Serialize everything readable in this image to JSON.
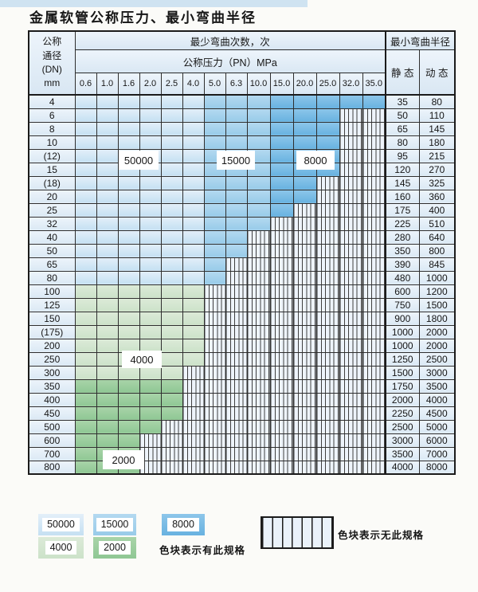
{
  "page": {
    "title": "金属软管公称压力、最小弯曲半径"
  },
  "table": {
    "header": {
      "dn_lines": [
        "公称",
        "通径",
        "(DN)",
        "mm"
      ],
      "cycles_label": "最少弯曲次数，次",
      "pressure_label": "公称压力（PN）MPa",
      "pressures": [
        "0.6",
        "1.0",
        "1.6",
        "2.0",
        "2.5",
        "4.0",
        "5.0",
        "6.3",
        "10.0",
        "15.0",
        "20.0",
        "25.0",
        "32.0",
        "35.0"
      ],
      "radius_label": "最小弯曲半径",
      "static_label": "静 态",
      "dynamic_label": "动 态"
    },
    "rows": [
      {
        "dn": "4",
        "group": "blue",
        "max_col": 13,
        "static": "35",
        "dynamic": "80"
      },
      {
        "dn": "6",
        "group": "blue",
        "max_col": 11,
        "static": "50",
        "dynamic": "110"
      },
      {
        "dn": "8",
        "group": "blue",
        "max_col": 11,
        "static": "65",
        "dynamic": "145"
      },
      {
        "dn": "10",
        "group": "blue",
        "max_col": 11,
        "static": "80",
        "dynamic": "180"
      },
      {
        "dn": "(12)",
        "group": "blue",
        "max_col": 11,
        "static": "95",
        "dynamic": "215"
      },
      {
        "dn": "15",
        "group": "blue",
        "max_col": 11,
        "static": "120",
        "dynamic": "270"
      },
      {
        "dn": "(18)",
        "group": "blue",
        "max_col": 10,
        "static": "145",
        "dynamic": "325"
      },
      {
        "dn": "20",
        "group": "blue",
        "max_col": 10,
        "static": "160",
        "dynamic": "360"
      },
      {
        "dn": "25",
        "group": "blue",
        "max_col": 9,
        "static": "175",
        "dynamic": "400"
      },
      {
        "dn": "32",
        "group": "blue",
        "max_col": 8,
        "static": "225",
        "dynamic": "510"
      },
      {
        "dn": "40",
        "group": "blue",
        "max_col": 7,
        "static": "280",
        "dynamic": "640"
      },
      {
        "dn": "50",
        "group": "blue",
        "max_col": 7,
        "static": "350",
        "dynamic": "800"
      },
      {
        "dn": "65",
        "group": "blue",
        "max_col": 6,
        "static": "390",
        "dynamic": "845"
      },
      {
        "dn": "80",
        "group": "blue",
        "max_col": 6,
        "static": "480",
        "dynamic": "1000"
      },
      {
        "dn": "100",
        "group": "g4",
        "max_col": 5,
        "static": "600",
        "dynamic": "1200"
      },
      {
        "dn": "125",
        "group": "g4",
        "max_col": 5,
        "static": "750",
        "dynamic": "1500"
      },
      {
        "dn": "150",
        "group": "g4",
        "max_col": 5,
        "static": "900",
        "dynamic": "1800"
      },
      {
        "dn": "(175)",
        "group": "g4",
        "max_col": 5,
        "static": "1000",
        "dynamic": "2000"
      },
      {
        "dn": "200",
        "group": "g4",
        "max_col": 5,
        "static": "1000",
        "dynamic": "2000"
      },
      {
        "dn": "250",
        "group": "g4",
        "max_col": 5,
        "static": "1250",
        "dynamic": "2500"
      },
      {
        "dn": "300",
        "group": "g4",
        "max_col": 4,
        "static": "1500",
        "dynamic": "3000"
      },
      {
        "dn": "350",
        "group": "g2",
        "max_col": 4,
        "static": "1750",
        "dynamic": "3500"
      },
      {
        "dn": "400",
        "group": "g2",
        "max_col": 4,
        "static": "2000",
        "dynamic": "4000"
      },
      {
        "dn": "450",
        "group": "g2",
        "max_col": 4,
        "static": "2250",
        "dynamic": "4500"
      },
      {
        "dn": "500",
        "group": "g2",
        "max_col": 3,
        "static": "2500",
        "dynamic": "5000"
      },
      {
        "dn": "600",
        "group": "g2",
        "max_col": 2,
        "static": "3000",
        "dynamic": "6000"
      },
      {
        "dn": "700",
        "group": "g2",
        "max_col": 2,
        "static": "3500",
        "dynamic": "7000"
      },
      {
        "dn": "800",
        "group": "g2",
        "max_col": 2,
        "static": "4000",
        "dynamic": "8000"
      }
    ],
    "blue_bands": {
      "c50_last_col": 5,
      "c15_last_col": 8
    }
  },
  "overlay_labels": {
    "l50000": "50000",
    "l15000": "15000",
    "l8000": "8000",
    "l4000": "4000",
    "l2000": "2000"
  },
  "legend": {
    "swatch_50000": "50000",
    "swatch_15000": "15000",
    "swatch_8000": "8000",
    "swatch_4000": "4000",
    "swatch_2000": "2000",
    "has_spec_text": "色块表示有此规格",
    "no_spec_text": "色块表示无此规格"
  },
  "colors": {
    "cycles_50000": "#c5e0f2",
    "cycles_15000": "#98cbe9",
    "cycles_8000": "#68b2e0",
    "cycles_4000": "#cce2c9",
    "cycles_2000": "#8fc794",
    "no_spec_background": "#eef4fb",
    "header_background": "#e3eef8"
  }
}
